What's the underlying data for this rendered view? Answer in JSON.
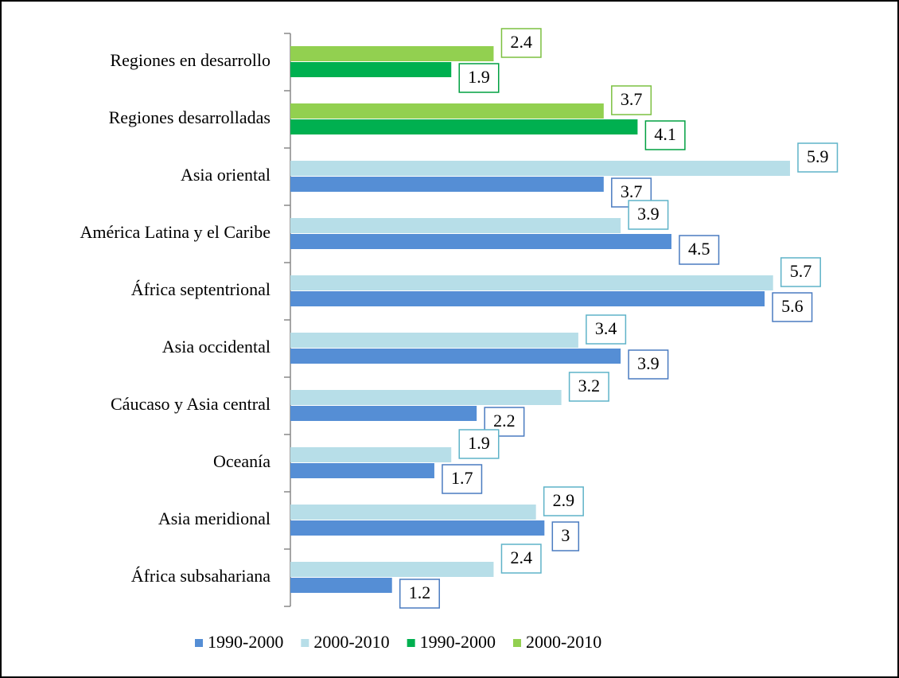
{
  "chart_data": {
    "type": "bar",
    "orientation": "horizontal",
    "categories": [
      "Regiones en desarrollo",
      "Regiones desarrolladas",
      "Asia oriental",
      "América Latina y el Caribe",
      "África septentrional",
      "Asia occidental",
      "Cáucaso y Asia central",
      "Oceanía",
      "Asia meridional",
      "África subsahariana"
    ],
    "series": [
      {
        "name": "1990-2000",
        "color": "#558ed5",
        "values": [
          null,
          null,
          3.7,
          4.5,
          5.6,
          3.9,
          2.2,
          1.7,
          3,
          1.2
        ]
      },
      {
        "name": "2000-2010",
        "color": "#b7dee8",
        "values": [
          null,
          null,
          5.9,
          3.9,
          5.7,
          3.4,
          3.2,
          1.9,
          2.9,
          2.4
        ]
      },
      {
        "name": "1990-2000",
        "color": "#00b050",
        "values": [
          1.9,
          4.1,
          null,
          null,
          null,
          null,
          null,
          null,
          null,
          null
        ]
      },
      {
        "name": "2000-2010",
        "color": "#92d050",
        "values": [
          2.4,
          3.7,
          null,
          null,
          null,
          null,
          null,
          null,
          null,
          null
        ]
      }
    ],
    "legend": "bottom"
  }
}
